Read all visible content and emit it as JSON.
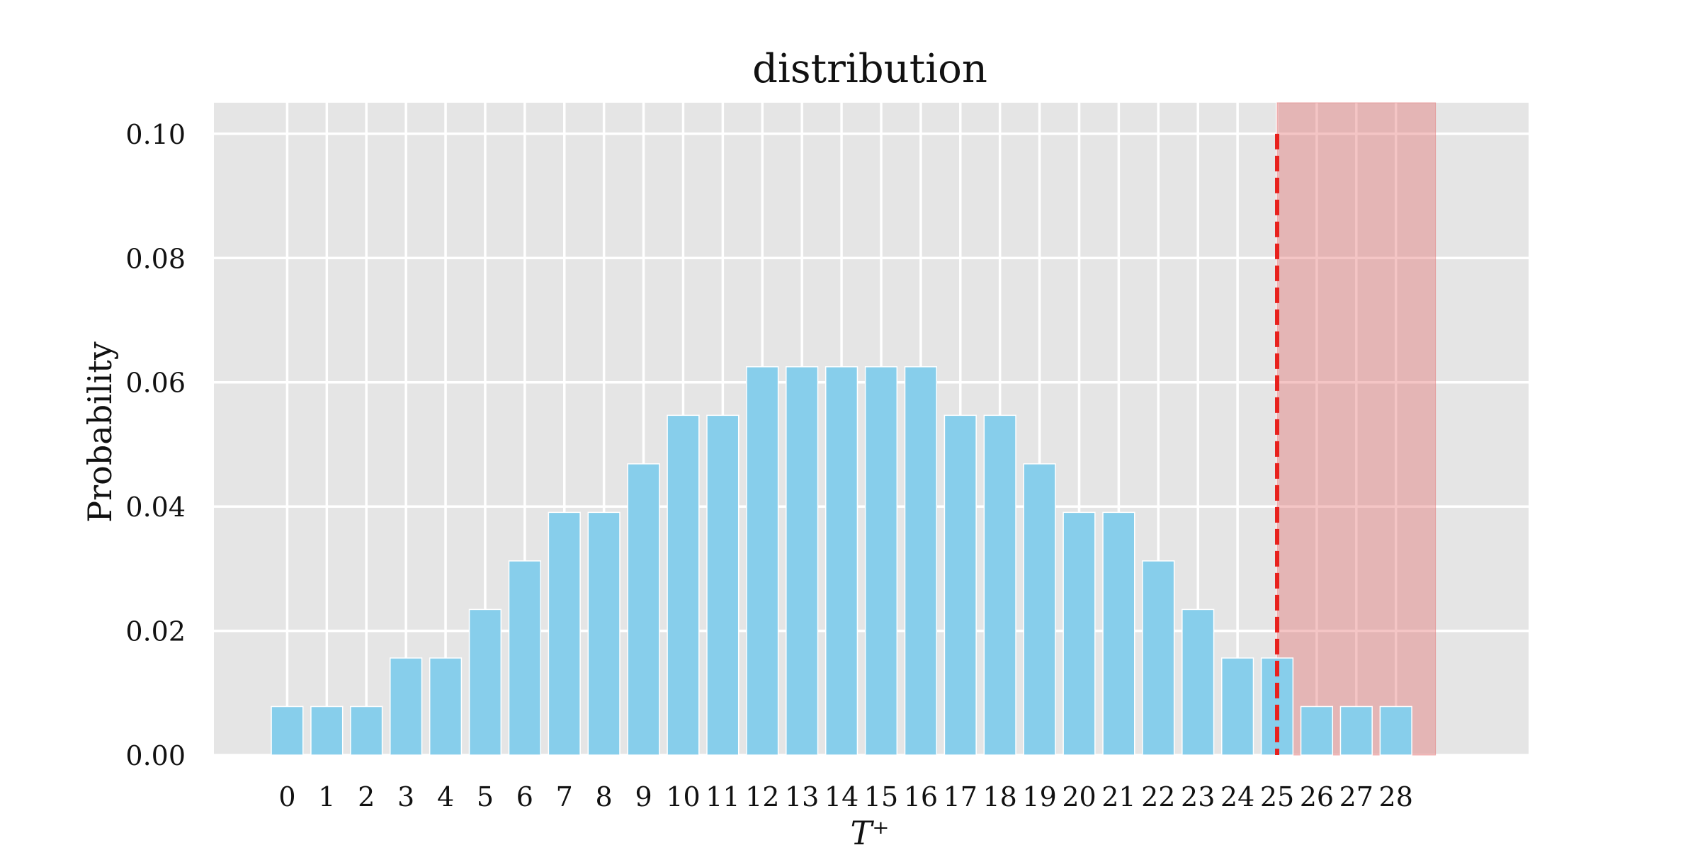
{
  "chart_data": {
    "type": "bar",
    "title": "distribution",
    "xlabel": "T⁺",
    "ylabel": "Probability",
    "x": [
      0,
      1,
      2,
      3,
      4,
      5,
      6,
      7,
      8,
      9,
      10,
      11,
      12,
      13,
      14,
      15,
      16,
      17,
      18,
      19,
      20,
      21,
      22,
      23,
      24,
      25,
      26,
      27,
      28
    ],
    "values": [
      0.0078125,
      0.0078125,
      0.0078125,
      0.015625,
      0.015625,
      0.0234375,
      0.03125,
      0.0390625,
      0.0390625,
      0.046875,
      0.0546875,
      0.0546875,
      0.0625,
      0.0625,
      0.0625,
      0.0625,
      0.0625,
      0.0546875,
      0.0546875,
      0.046875,
      0.0390625,
      0.0390625,
      0.03125,
      0.0234375,
      0.015625,
      0.015625,
      0.0078125,
      0.0078125,
      0.0078125
    ],
    "ylim": [
      0,
      0.105
    ],
    "xlim": [
      -1.85,
      31.35
    ],
    "yticks": [
      0.0,
      0.02,
      0.04,
      0.06,
      0.08,
      0.1
    ],
    "ytick_labels": [
      "0.00",
      "0.02",
      "0.04",
      "0.06",
      "0.08",
      "0.10"
    ],
    "grid": true,
    "colors": {
      "bar": "#87ceeb",
      "background": "#e5e5e5",
      "grid": "#ffffff",
      "critical_line": "#e8211d",
      "rejection_region": "#e46d6d"
    },
    "critical_value": 25,
    "rejection_region": [
      25,
      29
    ]
  }
}
